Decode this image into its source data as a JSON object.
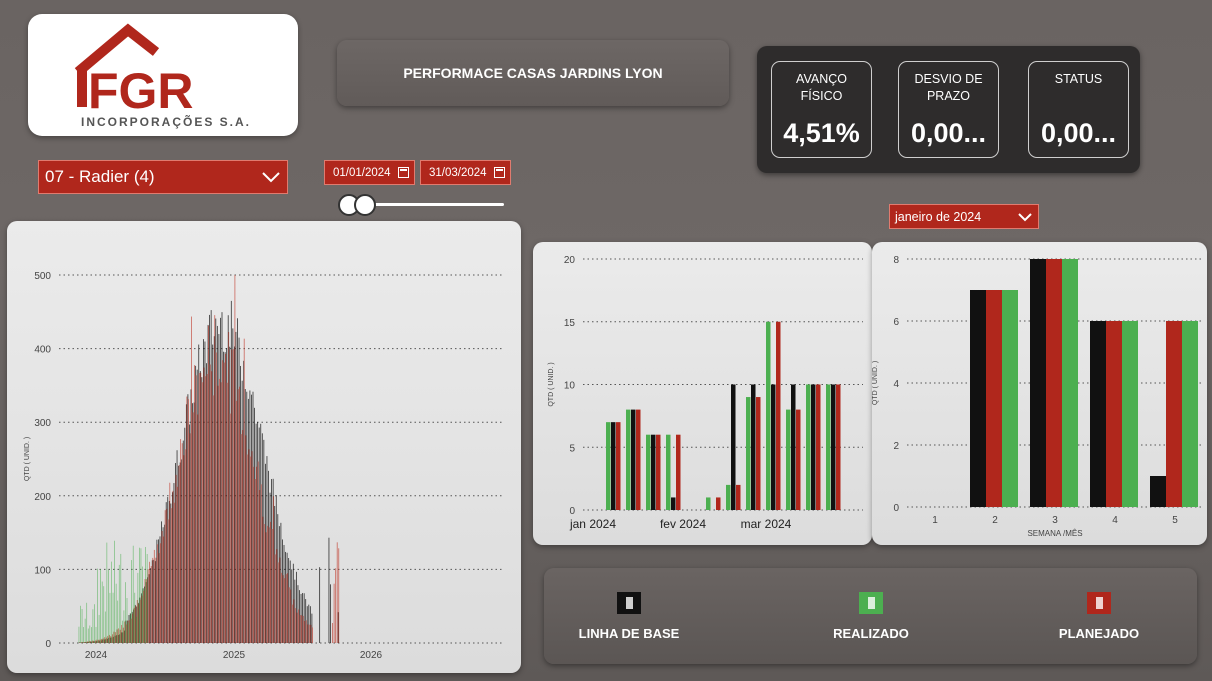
{
  "header": {
    "logo_text": "FGR",
    "logo_subtitle": "INCORPORAÇÕES S.A.",
    "title": "PERFORMACE CASAS JARDINS LYON"
  },
  "kpis": [
    {
      "label": "AVANÇO FÍSICO",
      "value": "4,51%"
    },
    {
      "label": "DESVIO DE PRAZO",
      "value": "0,00..."
    },
    {
      "label": "STATUS",
      "value": "0,00..."
    }
  ],
  "filters": {
    "stage_selected": "07 - Radier (4)",
    "date_start": "01/01/2024",
    "date_end": "31/03/2024",
    "month_selected": "janeiro de 2024"
  },
  "icons": {
    "chevron": "chevron-down-icon",
    "calendar": "calendar-icon"
  },
  "colors": {
    "base": "#111111",
    "realizado": "#4caf50",
    "planejado": "#b0271c",
    "accent": "#b0271c"
  },
  "legend": [
    {
      "key": "base",
      "label": "LINHA DE BASE"
    },
    {
      "key": "realizado",
      "label": "REALIZADO"
    },
    {
      "key": "planejado",
      "label": "PLANEJADO"
    }
  ],
  "chart_data": [
    {
      "id": "overall",
      "type": "bar",
      "ylabel": "QTD ( UNID. )",
      "xlabel": "",
      "ylim": [
        0,
        500
      ],
      "yticks": [
        0,
        100,
        200,
        300,
        400,
        500
      ],
      "xticks": [
        "2024",
        "2025",
        "2026"
      ],
      "series": [
        {
          "name": "LINHA DE BASE",
          "color_key": "base",
          "peak": 450
        },
        {
          "name": "REALIZADO",
          "color_key": "realizado",
          "peak": 140
        },
        {
          "name": "PLANEJADO",
          "color_key": "planejado",
          "peak": 500
        }
      ]
    },
    {
      "id": "monthly",
      "type": "bar",
      "ylabel": "QTD ( UNID. )",
      "xlabel": "",
      "ylim": [
        0,
        20
      ],
      "yticks": [
        0,
        5,
        10,
        15,
        20
      ],
      "xticks": [
        "jan 2024",
        "fev 2024",
        "mar 2024"
      ],
      "groups": [
        {
          "base": 7,
          "realizado": 7,
          "planejado": 7
        },
        {
          "base": 8,
          "realizado": 8,
          "planejado": 8
        },
        {
          "base": 6,
          "realizado": 6,
          "planejado": 6
        },
        {
          "base": 1,
          "realizado": 6,
          "planejado": 6
        },
        {
          "base": 0,
          "realizado": 1,
          "planejado": 1
        },
        {
          "base": 10,
          "realizado": 2,
          "planejado": 2
        },
        {
          "base": 10,
          "realizado": 9,
          "planejado": 9
        },
        {
          "base": 10,
          "realizado": 15,
          "planejado": 15
        },
        {
          "base": 10,
          "realizado": 8,
          "planejado": 8
        },
        {
          "base": 10,
          "realizado": 10,
          "planejado": 10
        },
        {
          "base": 10,
          "realizado": 10,
          "planejado": 10
        }
      ]
    },
    {
      "id": "weekly",
      "type": "bar",
      "ylabel": "QTD ( UNID. )",
      "xlabel": "SEMANA /MÊS",
      "ylim": [
        0,
        8
      ],
      "yticks": [
        0,
        2,
        4,
        6,
        8
      ],
      "categories": [
        "1",
        "2",
        "3",
        "4",
        "5"
      ],
      "series": [
        {
          "name": "LINHA DE BASE",
          "color_key": "base",
          "values": [
            0,
            7,
            8,
            6,
            1
          ]
        },
        {
          "name": "PLANEJADO",
          "color_key": "planejado",
          "values": [
            0,
            7,
            8,
            6,
            6
          ]
        },
        {
          "name": "REALIZADO",
          "color_key": "realizado",
          "values": [
            0,
            7,
            8,
            6,
            6
          ]
        }
      ]
    }
  ]
}
